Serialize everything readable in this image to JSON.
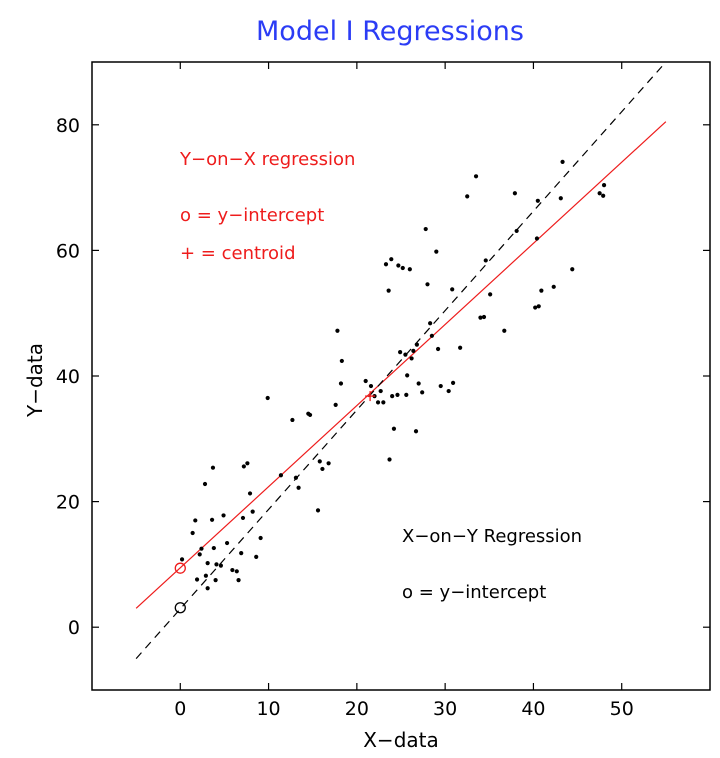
{
  "chart_data": {
    "type": "scatter",
    "title": "Model I Regressions",
    "xlabel": "X−data",
    "ylabel": "Y−data",
    "xlim": [
      -10,
      60
    ],
    "ylim": [
      -10,
      90
    ],
    "xticks": [
      0,
      10,
      20,
      30,
      40,
      50
    ],
    "yticks": [
      0,
      20,
      40,
      60,
      80
    ],
    "grid": false,
    "colors": {
      "title": "#2b3cf5",
      "yx_line": "#ee1c1c",
      "xy_line": "#000000",
      "points": "#000000"
    },
    "points": [
      [
        0.2,
        10.8
      ],
      [
        1.4,
        15
      ],
      [
        1.7,
        17
      ],
      [
        1.9,
        7.6
      ],
      [
        2.2,
        11.6
      ],
      [
        2.4,
        12.5
      ],
      [
        2.8,
        22.8
      ],
      [
        2.9,
        8.2
      ],
      [
        3.1,
        6.2
      ],
      [
        3.1,
        10.2
      ],
      [
        3.6,
        17.1
      ],
      [
        3.7,
        25.4
      ],
      [
        3.8,
        12.6
      ],
      [
        4.0,
        7.5
      ],
      [
        4.1,
        10.0
      ],
      [
        4.6,
        9.8
      ],
      [
        4.9,
        17.8
      ],
      [
        5.3,
        13.4
      ],
      [
        5.9,
        9.1
      ],
      [
        6.4,
        8.9
      ],
      [
        6.6,
        7.5
      ],
      [
        6.9,
        11.8
      ],
      [
        7.1,
        17.4
      ],
      [
        7.2,
        25.6
      ],
      [
        7.6,
        26.1
      ],
      [
        7.9,
        21.3
      ],
      [
        8.2,
        18.4
      ],
      [
        8.6,
        11.2
      ],
      [
        9.1,
        14.2
      ],
      [
        9.9,
        36.5
      ],
      [
        11.4,
        24.2
      ],
      [
        12.7,
        33.0
      ],
      [
        13.1,
        23.8
      ],
      [
        13.4,
        22.2
      ],
      [
        14.5,
        34.0
      ],
      [
        14.7,
        33.8
      ],
      [
        15.6,
        18.6
      ],
      [
        15.8,
        26.4
      ],
      [
        16.1,
        25.2
      ],
      [
        16.8,
        26.1
      ],
      [
        17.6,
        35.4
      ],
      [
        17.8,
        47.2
      ],
      [
        18.3,
        42.4
      ],
      [
        18.2,
        38.8
      ],
      [
        21.0,
        39.2
      ],
      [
        21.6,
        38.4
      ],
      [
        22.0,
        36.8
      ],
      [
        22.4,
        35.8
      ],
      [
        22.7,
        37.6
      ],
      [
        23.0,
        35.8
      ],
      [
        23.3,
        57.8
      ],
      [
        23.6,
        53.6
      ],
      [
        23.7,
        26.7
      ],
      [
        23.9,
        58.6
      ],
      [
        24.0,
        36.8
      ],
      [
        24.2,
        31.6
      ],
      [
        24.6,
        37.0
      ],
      [
        24.7,
        57.6
      ],
      [
        24.9,
        43.8
      ],
      [
        25.2,
        57.2
      ],
      [
        25.5,
        43.4
      ],
      [
        25.6,
        37.0
      ],
      [
        25.7,
        40.1
      ],
      [
        26.0,
        57.0
      ],
      [
        26.2,
        42.8
      ],
      [
        26.4,
        44.0
      ],
      [
        26.7,
        31.2
      ],
      [
        26.8,
        45.0
      ],
      [
        27.0,
        38.8
      ],
      [
        27.4,
        37.4
      ],
      [
        27.8,
        63.4
      ],
      [
        28.0,
        54.6
      ],
      [
        28.3,
        48.4
      ],
      [
        28.5,
        46.4
      ],
      [
        29.0,
        59.8
      ],
      [
        29.2,
        44.3
      ],
      [
        29.5,
        38.4
      ],
      [
        30.4,
        37.6
      ],
      [
        30.8,
        53.8
      ],
      [
        30.9,
        38.9
      ],
      [
        31.7,
        44.5
      ],
      [
        32.5,
        68.6
      ],
      [
        33.5,
        71.8
      ],
      [
        34.0,
        49.3
      ],
      [
        34.4,
        49.4
      ],
      [
        34.6,
        58.4
      ],
      [
        35.1,
        53.0
      ],
      [
        36.7,
        47.2
      ],
      [
        37.9,
        69.1
      ],
      [
        38.1,
        63.1
      ],
      [
        40.2,
        50.9
      ],
      [
        40.4,
        61.9
      ],
      [
        40.5,
        67.9
      ],
      [
        40.6,
        51.1
      ],
      [
        40.9,
        53.6
      ],
      [
        42.3,
        54.2
      ],
      [
        43.1,
        68.3
      ],
      [
        43.3,
        74.1
      ],
      [
        44.4,
        57.0
      ],
      [
        47.5,
        69.1
      ],
      [
        47.9,
        68.7
      ],
      [
        48.0,
        70.4
      ]
    ],
    "lines": [
      {
        "name": "Y−on−X regression",
        "color": "#ee1c1c",
        "style": "solid",
        "x": [
          -5,
          55
        ],
        "y": [
          3.0,
          80.5
        ]
      },
      {
        "name": "X−on−Y Regression",
        "color": "#000000",
        "style": "dashed",
        "x": [
          -5,
          55
        ],
        "y": [
          -5.0,
          90.0
        ]
      }
    ],
    "intercepts": [
      {
        "series": "Y−on−X regression",
        "x": 0,
        "y": 9.4,
        "color": "#ee1c1c"
      },
      {
        "series": "X−on−Y Regression",
        "x": 0,
        "y": 3.1,
        "color": "#000000"
      }
    ],
    "centroid": {
      "x": 21.5,
      "y": 36.8,
      "color": "#ee1c1c"
    },
    "annotations": {
      "yx_title": "Y−on−X regression",
      "yx_intercept": "o  =  y−intercept",
      "yx_centroid": "+  =  centroid",
      "xy_title": "X−on−Y Regression",
      "xy_intercept": "o  =  y−intercept"
    }
  }
}
